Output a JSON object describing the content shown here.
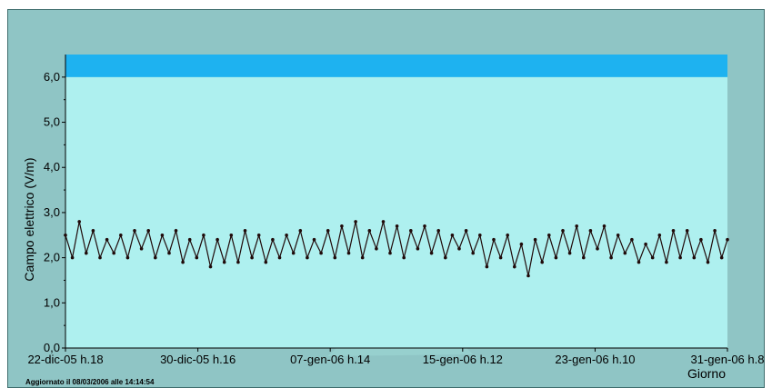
{
  "chart_data": {
    "type": "line",
    "title": "",
    "xlabel": "Giorno",
    "ylabel": "Campo elettrico (V/m)",
    "ylim": [
      0,
      6.5
    ],
    "xlim": [
      0,
      9.583
    ],
    "y_ticks": [
      {
        "value": 0,
        "label": "0,0"
      },
      {
        "value": 1,
        "label": "1,0"
      },
      {
        "value": 2,
        "label": "2,0"
      },
      {
        "value": 3,
        "label": "3,0"
      },
      {
        "value": 4,
        "label": "4,0"
      },
      {
        "value": 5,
        "label": "5,0"
      },
      {
        "value": 6,
        "label": "6,0"
      }
    ],
    "x_ticks": [
      {
        "value": 0,
        "label": "22-dic-05 h.18"
      },
      {
        "value": 1.917,
        "label": "30-dic-05 h.16"
      },
      {
        "value": 3.833,
        "label": "07-gen-06 h.14"
      },
      {
        "value": 5.75,
        "label": "15-gen-06 h.12"
      },
      {
        "value": 7.667,
        "label": "23-gen-06 h.10"
      },
      {
        "value": 9.583,
        "label": "31-gen-06 h.8"
      }
    ],
    "limit_band": {
      "from": 6.0,
      "to": 6.5,
      "color": "#1eb2f0"
    },
    "grid": false,
    "background_color": "#aef0ef",
    "series": [
      {
        "color": "#200a0a",
        "x": [
          0,
          0.1,
          0.2,
          0.3,
          0.4,
          0.5,
          0.6,
          0.7,
          0.8,
          0.9,
          1,
          1.1,
          1.2,
          1.3,
          1.4,
          1.5,
          1.6,
          1.7,
          1.8,
          1.9,
          2,
          2.1,
          2.2,
          2.3,
          2.4,
          2.5,
          2.6,
          2.7,
          2.8,
          2.9,
          3,
          3.1,
          3.2,
          3.3,
          3.4,
          3.5,
          3.6,
          3.7,
          3.8,
          3.9,
          4,
          4.1,
          4.2,
          4.3,
          4.4,
          4.5,
          4.6,
          4.7,
          4.8,
          4.9,
          5,
          5.1,
          5.2,
          5.3,
          5.4,
          5.5,
          5.6,
          5.7,
          5.8,
          5.9,
          6,
          6.1,
          6.2,
          6.3,
          6.4,
          6.5,
          6.6,
          6.7,
          6.8,
          6.9,
          7,
          7.1,
          7.2,
          7.3,
          7.4,
          7.5,
          7.6,
          7.7,
          7.8,
          7.9,
          8,
          8.1,
          8.2,
          8.3,
          8.4,
          8.5,
          8.6,
          8.7,
          8.8,
          8.9,
          9,
          9.1,
          9.2,
          9.3,
          9.4,
          9.5,
          9.583
        ],
        "y": [
          2.5,
          2.0,
          2.8,
          2.1,
          2.6,
          2.0,
          2.4,
          2.1,
          2.5,
          2.0,
          2.6,
          2.2,
          2.6,
          2.0,
          2.5,
          2.1,
          2.6,
          1.9,
          2.4,
          2.0,
          2.5,
          1.8,
          2.4,
          1.9,
          2.5,
          1.9,
          2.6,
          2.0,
          2.5,
          1.9,
          2.4,
          2.0,
          2.5,
          2.1,
          2.6,
          2.0,
          2.4,
          2.1,
          2.6,
          2.0,
          2.7,
          2.1,
          2.8,
          2.0,
          2.6,
          2.2,
          2.8,
          2.1,
          2.7,
          2.0,
          2.6,
          2.2,
          2.7,
          2.1,
          2.6,
          2.0,
          2.5,
          2.2,
          2.6,
          2.1,
          2.5,
          1.8,
          2.4,
          2.0,
          2.5,
          1.8,
          2.3,
          1.6,
          2.4,
          1.9,
          2.5,
          2.0,
          2.6,
          2.1,
          2.7,
          2.0,
          2.6,
          2.2,
          2.7,
          2.0,
          2.5,
          2.1,
          2.4,
          1.9,
          2.3,
          2.0,
          2.5,
          1.9,
          2.6,
          2.0,
          2.6,
          2.0,
          2.4,
          1.9,
          2.6,
          2.0,
          2.4
        ]
      }
    ]
  },
  "footer": {
    "updated_text": "Aggiornato il 08/03/2006 alle 14:14:54"
  }
}
